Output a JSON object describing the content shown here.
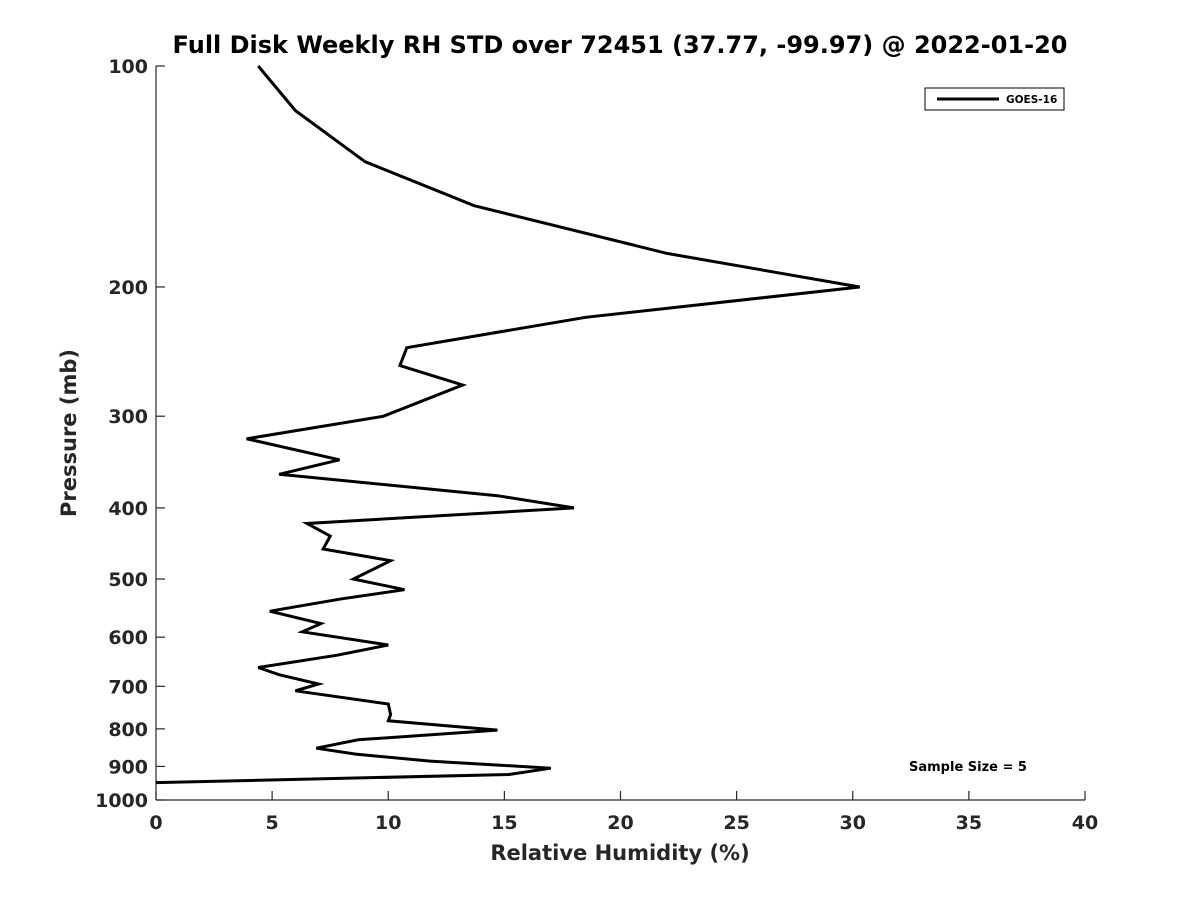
{
  "chart_data": {
    "type": "line",
    "title": "Full Disk Weekly RH STD over 72451 (37.77, -99.97) @ 2022-01-20",
    "xlabel": "Relative Humidity (%)",
    "ylabel": "Pressure (mb)",
    "xlim": [
      0,
      40
    ],
    "ylim": [
      100,
      1000
    ],
    "yscale": "log",
    "y_reversed": true,
    "xticks": [
      0,
      5,
      10,
      15,
      20,
      25,
      30,
      35,
      40
    ],
    "yticks": [
      100,
      200,
      300,
      400,
      500,
      600,
      700,
      800,
      900,
      1000
    ],
    "grid": false,
    "legend_placement": "top-right",
    "series": [
      {
        "name": "GOES-16",
        "color": "#000000",
        "x": [
          4.4,
          6.0,
          9.0,
          13.7,
          22.0,
          30.3,
          18.5,
          10.8,
          10.5,
          13.2,
          9.8,
          3.9,
          7.9,
          5.3,
          14.7,
          18.0,
          6.5,
          7.5,
          7.2,
          10.1,
          8.5,
          10.7,
          8.0,
          4.9,
          7.1,
          6.3,
          10.0,
          7.8,
          4.4,
          5.3,
          7.0,
          6.0,
          10.0,
          10.1,
          10.0,
          14.7,
          8.7,
          6.9,
          8.6,
          11.8,
          17.0,
          15.2,
          0.0
        ],
        "y": [
          100,
          115,
          135,
          155,
          180,
          200,
          220,
          242,
          256,
          272,
          300,
          322,
          344,
          360,
          385,
          400,
          420,
          437,
          455,
          472,
          500,
          517,
          532,
          553,
          575,
          590,
          615,
          635,
          660,
          675,
          695,
          710,
          740,
          765,
          780,
          803,
          828,
          850,
          866,
          885,
          905,
          923,
          947
        ]
      }
    ],
    "annotations": [
      "Sample Size = 5"
    ]
  }
}
